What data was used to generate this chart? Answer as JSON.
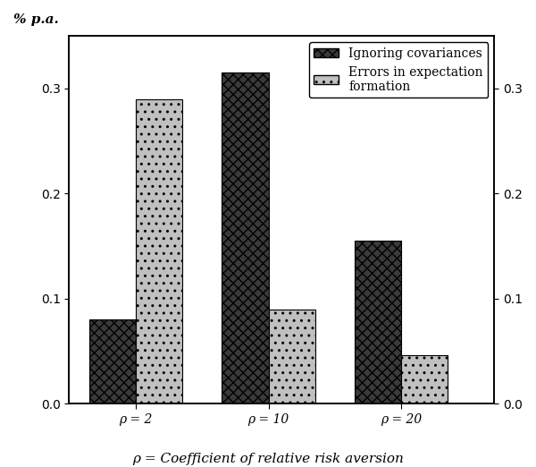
{
  "ylabel_left": "% p.a.",
  "xlabel": "ρ = Coefficient of relative risk aversion",
  "groups": [
    "ρ = 2",
    "ρ = 10",
    "ρ = 20"
  ],
  "series": [
    {
      "label": "Ignoring covariances",
      "values": [
        0.08,
        0.315,
        0.155
      ],
      "color": "#3a3a3a",
      "hatch": "xxx"
    },
    {
      "label": "Errors in expectation\nformation",
      "values": [
        0.29,
        0.09,
        0.046
      ],
      "color": "#c0c0c0",
      "hatch": ".."
    }
  ],
  "ylim": [
    0,
    0.35
  ],
  "yticks": [
    0,
    0.1,
    0.2,
    0.3
  ],
  "bar_width": 0.35,
  "group_positions": [
    1,
    2,
    3
  ],
  "background_color": "#ffffff",
  "legend_fontsize": 10,
  "axis_fontsize": 11,
  "tick_fontsize": 10
}
